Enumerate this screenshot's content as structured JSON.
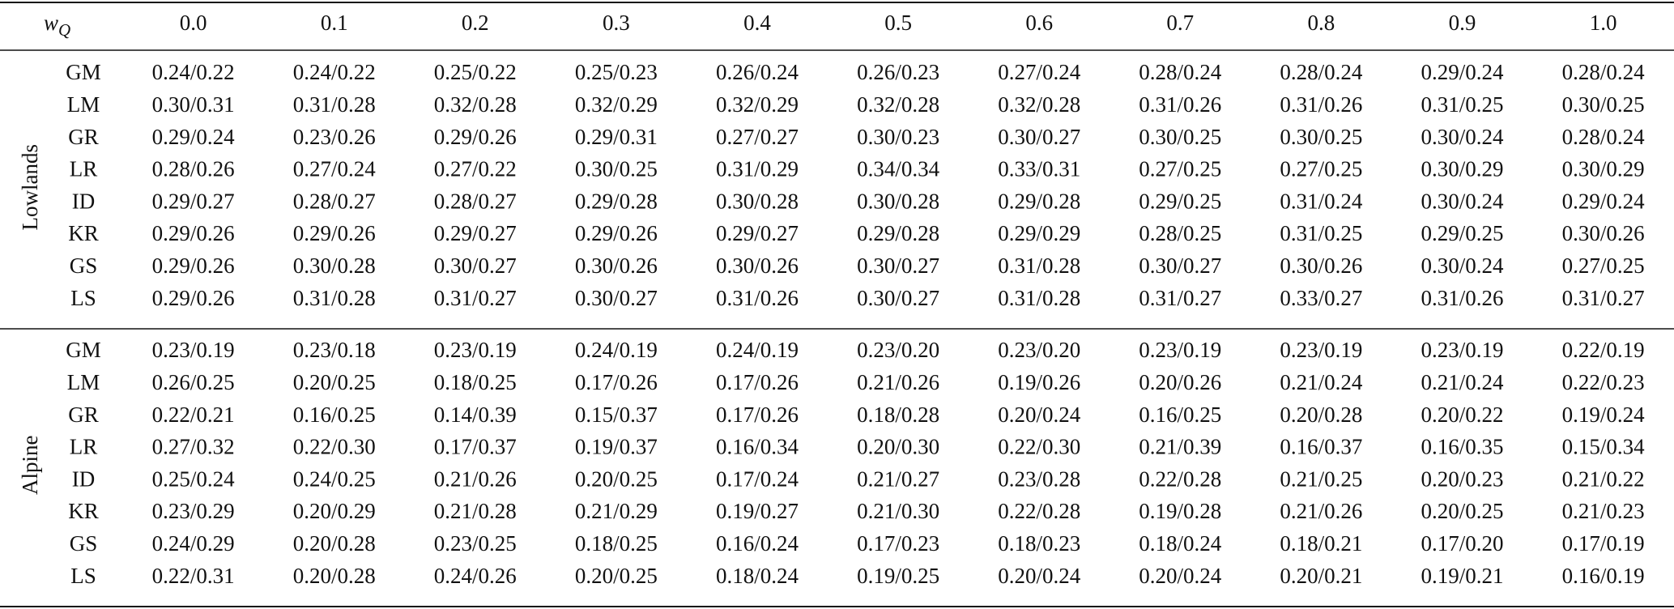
{
  "header": {
    "corner": {
      "symbol": "w",
      "subscript": "Q"
    },
    "columns": [
      "0.0",
      "0.1",
      "0.2",
      "0.3",
      "0.4",
      "0.5",
      "0.6",
      "0.7",
      "0.8",
      "0.9",
      "1.0"
    ]
  },
  "groups": [
    {
      "name": "Lowlands",
      "rows": [
        {
          "label": "GM",
          "cells": [
            "0.24/0.22",
            "0.24/0.22",
            "0.25/0.22",
            "0.25/0.23",
            "0.26/0.24",
            "0.26/0.23",
            "0.27/0.24",
            "0.28/0.24",
            "0.28/0.24",
            "0.29/0.24",
            "0.28/0.24"
          ]
        },
        {
          "label": "LM",
          "cells": [
            "0.30/0.31",
            "0.31/0.28",
            "0.32/0.28",
            "0.32/0.29",
            "0.32/0.29",
            "0.32/0.28",
            "0.32/0.28",
            "0.31/0.26",
            "0.31/0.26",
            "0.31/0.25",
            "0.30/0.25"
          ]
        },
        {
          "label": "GR",
          "cells": [
            "0.29/0.24",
            "0.23/0.26",
            "0.29/0.26",
            "0.29/0.31",
            "0.27/0.27",
            "0.30/0.23",
            "0.30/0.27",
            "0.30/0.25",
            "0.30/0.25",
            "0.30/0.24",
            "0.28/0.24"
          ]
        },
        {
          "label": "LR",
          "cells": [
            "0.28/0.26",
            "0.27/0.24",
            "0.27/0.22",
            "0.30/0.25",
            "0.31/0.29",
            "0.34/0.34",
            "0.33/0.31",
            "0.27/0.25",
            "0.27/0.25",
            "0.30/0.29",
            "0.30/0.29"
          ]
        },
        {
          "label": "ID",
          "cells": [
            "0.29/0.27",
            "0.28/0.27",
            "0.28/0.27",
            "0.29/0.28",
            "0.30/0.28",
            "0.30/0.28",
            "0.29/0.28",
            "0.29/0.25",
            "0.31/0.24",
            "0.30/0.24",
            "0.29/0.24"
          ]
        },
        {
          "label": "KR",
          "cells": [
            "0.29/0.26",
            "0.29/0.26",
            "0.29/0.27",
            "0.29/0.26",
            "0.29/0.27",
            "0.29/0.28",
            "0.29/0.29",
            "0.28/0.25",
            "0.31/0.25",
            "0.29/0.25",
            "0.30/0.26"
          ]
        },
        {
          "label": "GS",
          "cells": [
            "0.29/0.26",
            "0.30/0.28",
            "0.30/0.27",
            "0.30/0.26",
            "0.30/0.26",
            "0.30/0.27",
            "0.31/0.28",
            "0.30/0.27",
            "0.30/0.26",
            "0.30/0.24",
            "0.27/0.25"
          ]
        },
        {
          "label": "LS",
          "cells": [
            "0.29/0.26",
            "0.31/0.28",
            "0.31/0.27",
            "0.30/0.27",
            "0.31/0.26",
            "0.30/0.27",
            "0.31/0.28",
            "0.31/0.27",
            "0.33/0.27",
            "0.31/0.26",
            "0.31/0.27"
          ]
        }
      ]
    },
    {
      "name": "Alpine",
      "rows": [
        {
          "label": "GM",
          "cells": [
            "0.23/0.19",
            "0.23/0.18",
            "0.23/0.19",
            "0.24/0.19",
            "0.24/0.19",
            "0.23/0.20",
            "0.23/0.20",
            "0.23/0.19",
            "0.23/0.19",
            "0.23/0.19",
            "0.22/0.19"
          ]
        },
        {
          "label": "LM",
          "cells": [
            "0.26/0.25",
            "0.20/0.25",
            "0.18/0.25",
            "0.17/0.26",
            "0.17/0.26",
            "0.21/0.26",
            "0.19/0.26",
            "0.20/0.26",
            "0.21/0.24",
            "0.21/0.24",
            "0.22/0.23"
          ]
        },
        {
          "label": "GR",
          "cells": [
            "0.22/0.21",
            "0.16/0.25",
            "0.14/0.39",
            "0.15/0.37",
            "0.17/0.26",
            "0.18/0.28",
            "0.20/0.24",
            "0.16/0.25",
            "0.20/0.28",
            "0.20/0.22",
            "0.19/0.24"
          ]
        },
        {
          "label": "LR",
          "cells": [
            "0.27/0.32",
            "0.22/0.30",
            "0.17/0.37",
            "0.19/0.37",
            "0.16/0.34",
            "0.20/0.30",
            "0.22/0.30",
            "0.21/0.39",
            "0.16/0.37",
            "0.16/0.35",
            "0.15/0.34"
          ]
        },
        {
          "label": "ID",
          "cells": [
            "0.25/0.24",
            "0.24/0.25",
            "0.21/0.26",
            "0.20/0.25",
            "0.17/0.24",
            "0.21/0.27",
            "0.23/0.28",
            "0.22/0.28",
            "0.21/0.25",
            "0.20/0.23",
            "0.21/0.22"
          ]
        },
        {
          "label": "KR",
          "cells": [
            "0.23/0.29",
            "0.20/0.29",
            "0.21/0.28",
            "0.21/0.29",
            "0.19/0.27",
            "0.21/0.30",
            "0.22/0.28",
            "0.19/0.28",
            "0.21/0.26",
            "0.20/0.25",
            "0.21/0.23"
          ]
        },
        {
          "label": "GS",
          "cells": [
            "0.24/0.29",
            "0.20/0.28",
            "0.23/0.25",
            "0.18/0.25",
            "0.16/0.24",
            "0.17/0.23",
            "0.18/0.23",
            "0.18/0.24",
            "0.18/0.21",
            "0.17/0.20",
            "0.17/0.19"
          ]
        },
        {
          "label": "LS",
          "cells": [
            "0.22/0.31",
            "0.20/0.28",
            "0.24/0.26",
            "0.20/0.25",
            "0.18/0.24",
            "0.19/0.25",
            "0.20/0.24",
            "0.20/0.24",
            "0.20/0.21",
            "0.19/0.21",
            "0.16/0.19"
          ]
        }
      ]
    }
  ]
}
